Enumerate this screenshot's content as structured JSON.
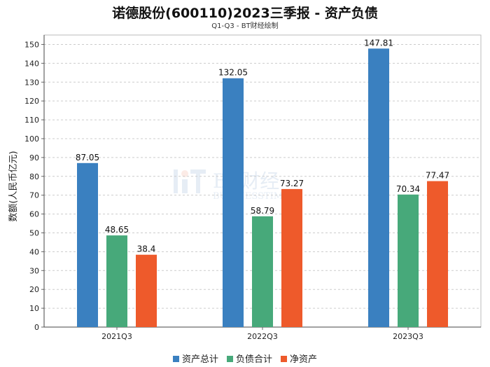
{
  "chart_data": {
    "type": "bar",
    "title": "诺德股份(600110)2023三季报 - 资产负债",
    "subtitle": "Q1-Q3 - BT财经绘制",
    "ylabel": "数额(人民币亿元)",
    "xlabel": "",
    "categories": [
      "2021Q3",
      "2022Q3",
      "2023Q3"
    ],
    "series": [
      {
        "name": "资产总计",
        "color": "#3a80c0",
        "values": [
          87.05,
          132.05,
          147.81
        ]
      },
      {
        "name": "负债合计",
        "color": "#47a97a",
        "values": [
          48.65,
          58.79,
          70.34
        ]
      },
      {
        "name": "净资产",
        "color": "#ee5a2b",
        "values": [
          38.4,
          73.27,
          77.47
        ]
      }
    ],
    "ylim": [
      0,
      155
    ],
    "yticks": [
      0,
      10,
      20,
      30,
      40,
      50,
      60,
      70,
      80,
      90,
      100,
      110,
      120,
      130,
      140,
      150
    ],
    "grid": true,
    "legend_position": "bottom"
  },
  "watermark": {
    "logo_text": "BT财经",
    "sub_text": "BUSINESSTIMES"
  }
}
